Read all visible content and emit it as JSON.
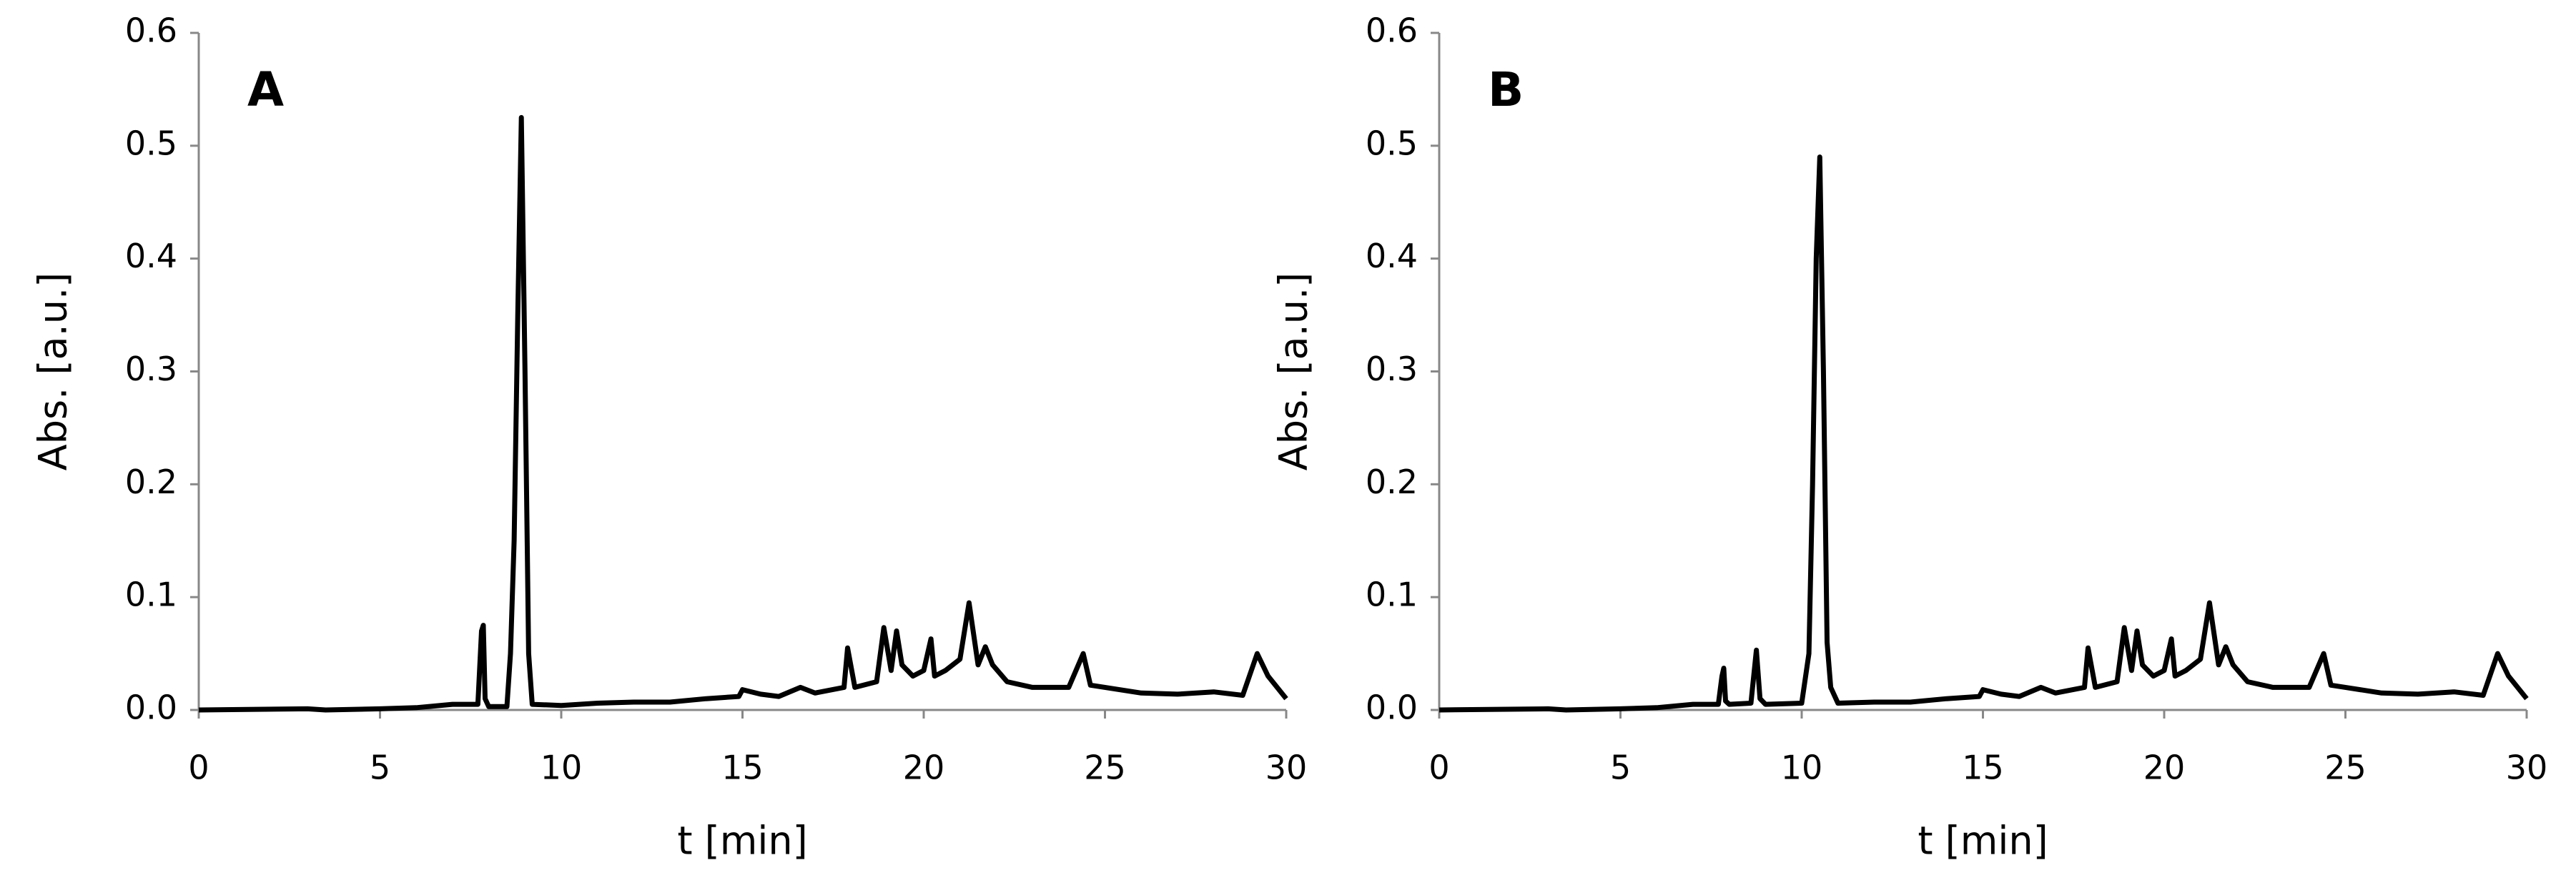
{
  "chart_data": [
    {
      "type": "line",
      "annotation": "A",
      "xlabel": "t [min]",
      "ylabel": "Abs. [a.u.]",
      "xlim": [
        0,
        30
      ],
      "xticks": [
        0,
        5,
        10,
        15,
        20,
        25,
        30
      ],
      "ylim": [
        0,
        0.6
      ],
      "yticks": [
        {
          "value": 0,
          "label": "0.0"
        },
        0.1,
        0.2,
        0.3,
        0.4,
        0.5,
        0.6
      ],
      "series": [
        {
          "color": "#000000",
          "x": [
            0,
            3,
            3.5,
            5,
            6,
            7,
            7.7,
            7.8,
            7.85,
            7.9,
            8.0,
            8.5,
            8.6,
            8.7,
            8.8,
            8.9,
            9.0,
            9.1,
            9.2,
            10,
            11,
            12,
            13,
            14,
            14.9,
            15,
            15.5,
            16,
            16.6,
            17,
            17.8,
            17.9,
            18.1,
            18.7,
            18.9,
            19.1,
            19.25,
            19.4,
            19.7,
            20,
            20.2,
            20.3,
            20.6,
            21,
            21.25,
            21.5,
            21.7,
            21.9,
            22.3,
            23,
            24,
            24.4,
            24.6,
            25,
            26,
            27,
            28,
            28.8,
            29.2,
            29.5,
            30
          ],
          "values": [
            0,
            0.001,
            0,
            0.001,
            0.002,
            0.005,
            0.005,
            0.07,
            0.075,
            0.01,
            0.003,
            0.003,
            0.05,
            0.15,
            0.35,
            0.525,
            0.3,
            0.05,
            0.005,
            0.004,
            0.006,
            0.007,
            0.007,
            0.01,
            0.012,
            0.018,
            0.014,
            0.012,
            0.02,
            0.015,
            0.02,
            0.055,
            0.02,
            0.025,
            0.073,
            0.035,
            0.07,
            0.04,
            0.03,
            0.035,
            0.063,
            0.03,
            0.035,
            0.045,
            0.095,
            0.04,
            0.056,
            0.04,
            0.025,
            0.02,
            0.02,
            0.05,
            0.022,
            0.02,
            0.015,
            0.014,
            0.016,
            0.013,
            0.05,
            0.03,
            0.01
          ]
        }
      ]
    },
    {
      "type": "line",
      "annotation": "B",
      "xlabel": "t [min]",
      "ylabel": "Abs. [a.u.]",
      "xlim": [
        0,
        30
      ],
      "xticks": [
        0,
        5,
        10,
        15,
        20,
        25,
        30
      ],
      "ylim": [
        0,
        0.6
      ],
      "yticks": [
        {
          "value": 0,
          "label": "0.0"
        },
        0.1,
        0.2,
        0.3,
        0.4,
        0.5,
        0.6
      ],
      "series": [
        {
          "color": "#000000",
          "x": [
            0,
            3,
            3.5,
            5,
            6,
            7,
            7.7,
            7.8,
            7.85,
            7.9,
            8.0,
            8.6,
            8.75,
            8.85,
            9.0,
            10.0,
            10.2,
            10.3,
            10.4,
            10.5,
            10.6,
            10.7,
            10.8,
            11.0,
            12,
            13,
            14,
            14.9,
            15,
            15.5,
            16,
            16.6,
            17,
            17.8,
            17.9,
            18.1,
            18.7,
            18.9,
            19.1,
            19.25,
            19.4,
            19.7,
            20,
            20.2,
            20.3,
            20.6,
            21,
            21.25,
            21.5,
            21.7,
            21.9,
            22.3,
            23,
            24,
            24.4,
            24.6,
            25,
            26,
            27,
            28,
            28.8,
            29.2,
            29.5,
            30
          ],
          "values": [
            0,
            0.001,
            0,
            0.001,
            0.002,
            0.005,
            0.005,
            0.03,
            0.037,
            0.008,
            0.005,
            0.006,
            0.053,
            0.01,
            0.005,
            0.006,
            0.05,
            0.2,
            0.4,
            0.49,
            0.3,
            0.06,
            0.02,
            0.006,
            0.007,
            0.007,
            0.01,
            0.012,
            0.018,
            0.014,
            0.012,
            0.02,
            0.015,
            0.02,
            0.055,
            0.02,
            0.025,
            0.073,
            0.035,
            0.07,
            0.04,
            0.03,
            0.035,
            0.063,
            0.03,
            0.035,
            0.045,
            0.095,
            0.04,
            0.056,
            0.04,
            0.025,
            0.02,
            0.02,
            0.05,
            0.022,
            0.02,
            0.015,
            0.014,
            0.016,
            0.013,
            0.05,
            0.03,
            0.01
          ]
        }
      ]
    }
  ]
}
